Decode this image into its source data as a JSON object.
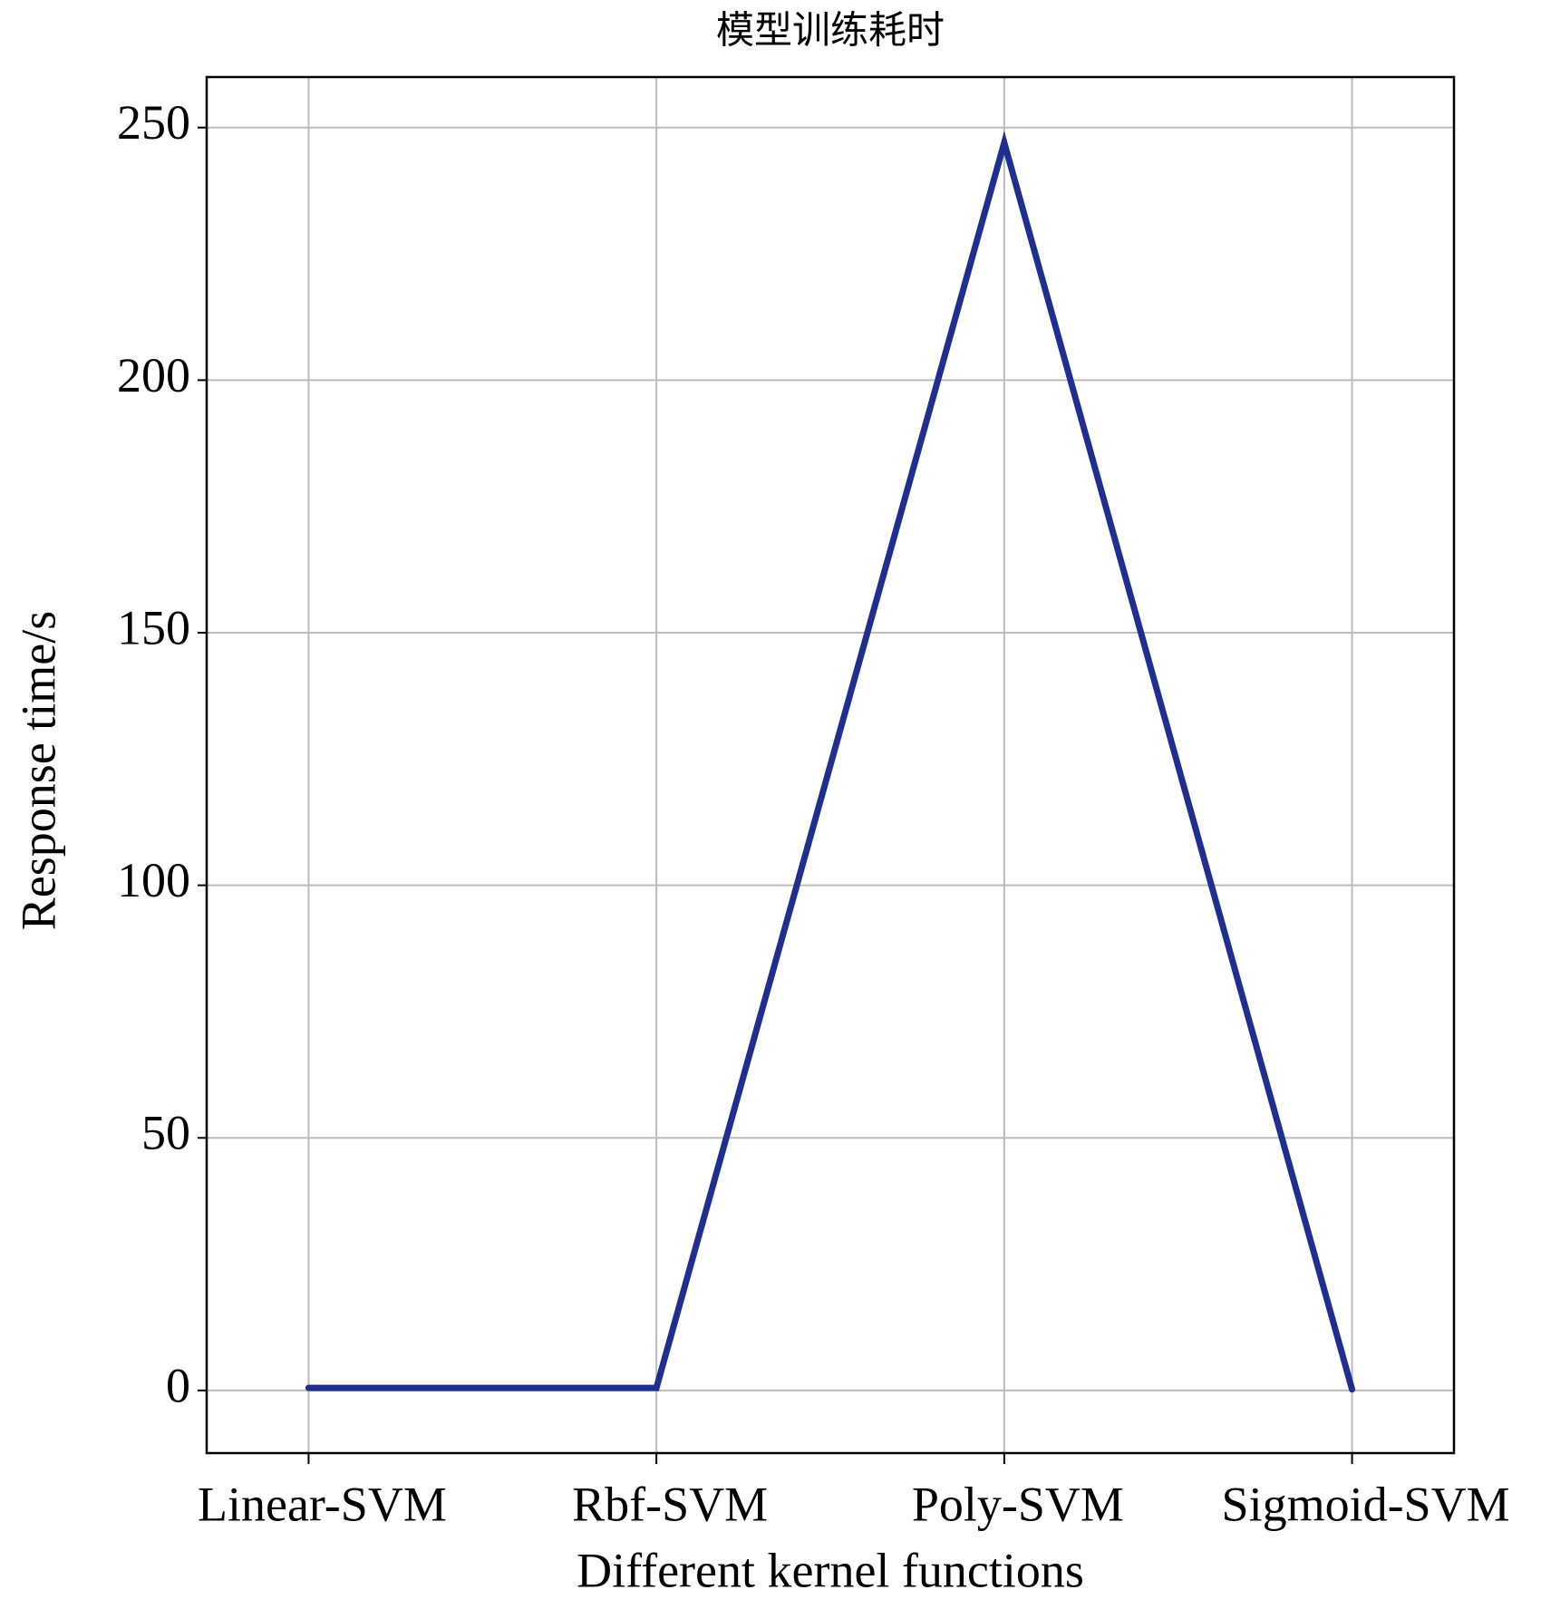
{
  "chart_data": {
    "type": "line",
    "title": "模型训练耗时",
    "x_label": "Different kernel functions",
    "y_label": "Response time/s",
    "categories": [
      "Linear-SVM",
      "Rbf-SVM",
      "Poly-SVM",
      "Sigmoid-SVM"
    ],
    "series": [
      {
        "name": "Response time",
        "color": "#1f2f8f",
        "values": [
          0.5,
          0.5,
          247,
          0.2
        ]
      }
    ],
    "ylim": [
      -12.4,
      260
    ],
    "yticks": [
      0,
      50,
      100,
      150,
      200,
      250
    ],
    "grid": true
  }
}
